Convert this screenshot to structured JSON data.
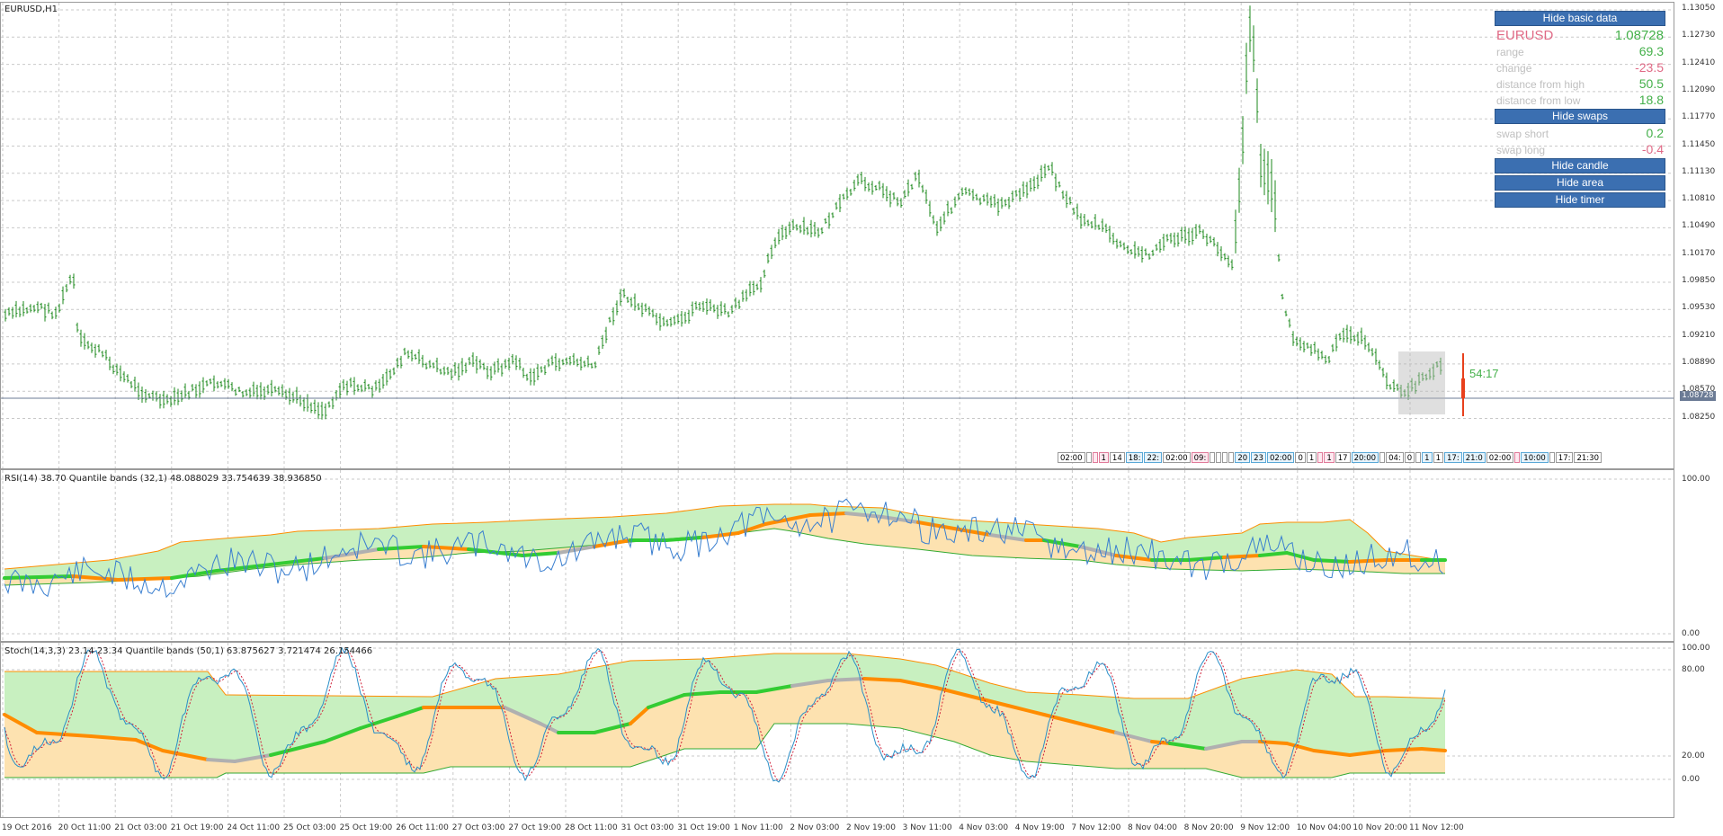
{
  "main_chart": {
    "label": "EURUSD,H1",
    "price_axis": [
      "1.13050",
      "1.12730",
      "1.12410",
      "1.12090",
      "1.11770",
      "1.11450",
      "1.11130",
      "1.10810",
      "1.10490",
      "1.10170",
      "1.09850",
      "1.09530",
      "1.09210",
      "1.08890",
      "1.08570",
      "1.08250"
    ],
    "current_price_tag": "1.08728",
    "timer": "54:17",
    "session_labels": [
      {
        "text": "02:00",
        "tone": "plain"
      },
      {
        "text": "",
        "tone": "plain"
      },
      {
        "text": "",
        "tone": "pink"
      },
      {
        "text": "1",
        "tone": "pink"
      },
      {
        "text": "14",
        "tone": "plain"
      },
      {
        "text": "18:",
        "tone": "blue"
      },
      {
        "text": "22:",
        "tone": "blue"
      },
      {
        "text": "02:00",
        "tone": "plain"
      },
      {
        "text": "09:",
        "tone": "pink"
      },
      {
        "text": "",
        "tone": "plain"
      },
      {
        "text": "",
        "tone": "plain"
      },
      {
        "text": "",
        "tone": "plain"
      },
      {
        "text": "",
        "tone": "plain"
      },
      {
        "text": "20",
        "tone": "blue"
      },
      {
        "text": "23",
        "tone": "blue"
      },
      {
        "text": "02:00",
        "tone": "blue"
      },
      {
        "text": "0",
        "tone": "plain"
      },
      {
        "text": "1",
        "tone": "plain"
      },
      {
        "text": "",
        "tone": "pink"
      },
      {
        "text": "1",
        "tone": "pink"
      },
      {
        "text": "17",
        "tone": "plain"
      },
      {
        "text": "20:00",
        "tone": "blue"
      },
      {
        "text": "",
        "tone": "plain"
      },
      {
        "text": "04:",
        "tone": "plain"
      },
      {
        "text": "0",
        "tone": "plain"
      },
      {
        "text": "",
        "tone": "plain"
      },
      {
        "text": "1",
        "tone": "blue"
      },
      {
        "text": "1",
        "tone": "plain"
      },
      {
        "text": "17:",
        "tone": "blue"
      },
      {
        "text": "21:0",
        "tone": "blue"
      },
      {
        "text": "02:00",
        "tone": "plain"
      },
      {
        "text": "",
        "tone": "pink"
      },
      {
        "text": "10:00",
        "tone": "blue"
      },
      {
        "text": "",
        "tone": "plain"
      },
      {
        "text": "17:",
        "tone": "plain"
      },
      {
        "text": "21:30",
        "tone": "plain"
      }
    ]
  },
  "rsi_pane": {
    "label": "RSI(14) 38.70 Quantile bands (32,1) 48.088029 33.754639 38.936850",
    "axis": [
      "100.00",
      "0.00"
    ]
  },
  "stoch_pane": {
    "label": "Stoch(14,3,3) 23.14 23.34 Quantile bands (50,1) 63.875627 3.721474 26.154466",
    "axis": [
      "100.00",
      "80.00",
      "20.00",
      "0.00"
    ]
  },
  "time_axis": [
    "19 Oct 2016",
    "20 Oct 11:00",
    "21 Oct 03:00",
    "21 Oct 19:00",
    "24 Oct 11:00",
    "25 Oct 03:00",
    "25 Oct 19:00",
    "26 Oct 11:00",
    "27 Oct 03:00",
    "27 Oct 19:00",
    "28 Oct 11:00",
    "31 Oct 03:00",
    "31 Oct 19:00",
    "1 Nov 11:00",
    "2 Nov 03:00",
    "2 Nov 19:00",
    "3 Nov 11:00",
    "4 Nov 03:00",
    "4 Nov 19:00",
    "7 Nov 12:00",
    "8 Nov 04:00",
    "8 Nov 20:00",
    "9 Nov 12:00",
    "10 Nov 04:00",
    "10 Nov 20:00",
    "11 Nov 12:00"
  ],
  "info_panel": {
    "hide_basic_data": "Hide basic data",
    "symbol": "EURUSD",
    "price": "1.08728",
    "rows": [
      {
        "key": "range",
        "value": "69.3",
        "negative": false
      },
      {
        "key": "change",
        "value": "-23.5",
        "negative": true
      },
      {
        "key": "distance from high",
        "value": "50.5",
        "negative": false
      },
      {
        "key": "distance from low",
        "value": "18.8",
        "negative": false
      }
    ],
    "hide_swaps": "Hide swaps",
    "swaps": [
      {
        "key": "swap short",
        "value": "0.2",
        "negative": false
      },
      {
        "key": "swap long",
        "value": "-0.4",
        "negative": true
      }
    ],
    "hide_candle": "Hide candle",
    "hide_area": "Hide area",
    "hide_timer": "Hide timer"
  },
  "colors": {
    "bars": "#1c8a1c",
    "grid": "#c9c9c9",
    "band_upper": "#c8f0c0",
    "band_lower": "#fde2b0",
    "line_green": "#33cc33",
    "line_orange": "#ff8c00",
    "line_grey": "#b0b0b0",
    "rsi_line": "#3a7fd0",
    "stoch_line": "#2a8fc8",
    "stoch_signal": "#d0203a",
    "last_candle": "#e8401c",
    "panel_button": "#3b6fb1"
  }
}
